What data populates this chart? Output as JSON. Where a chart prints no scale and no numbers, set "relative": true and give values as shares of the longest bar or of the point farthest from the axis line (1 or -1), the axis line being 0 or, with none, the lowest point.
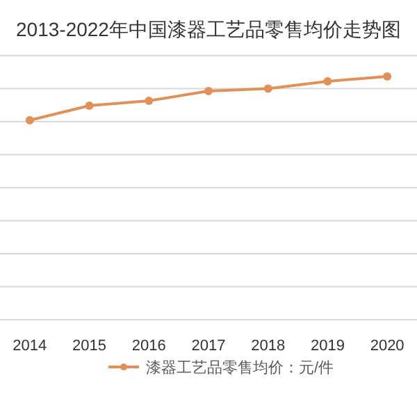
{
  "chart_data": {
    "type": "line",
    "title": "2013-2022年中国漆器工艺品零售均价走势图",
    "categories": [
      "2014",
      "2015",
      "2016",
      "2017",
      "2018",
      "2019",
      "2020"
    ],
    "relative": true,
    "series": [
      {
        "name": "漆器工艺品零售均价：元/件",
        "color": "#e0915a",
        "values": [
          0.82,
          0.88,
          0.9,
          0.94,
          0.95,
          0.98,
          1
        ]
      }
    ],
    "marker": "circle",
    "grid": "y",
    "legend": "bottom"
  }
}
